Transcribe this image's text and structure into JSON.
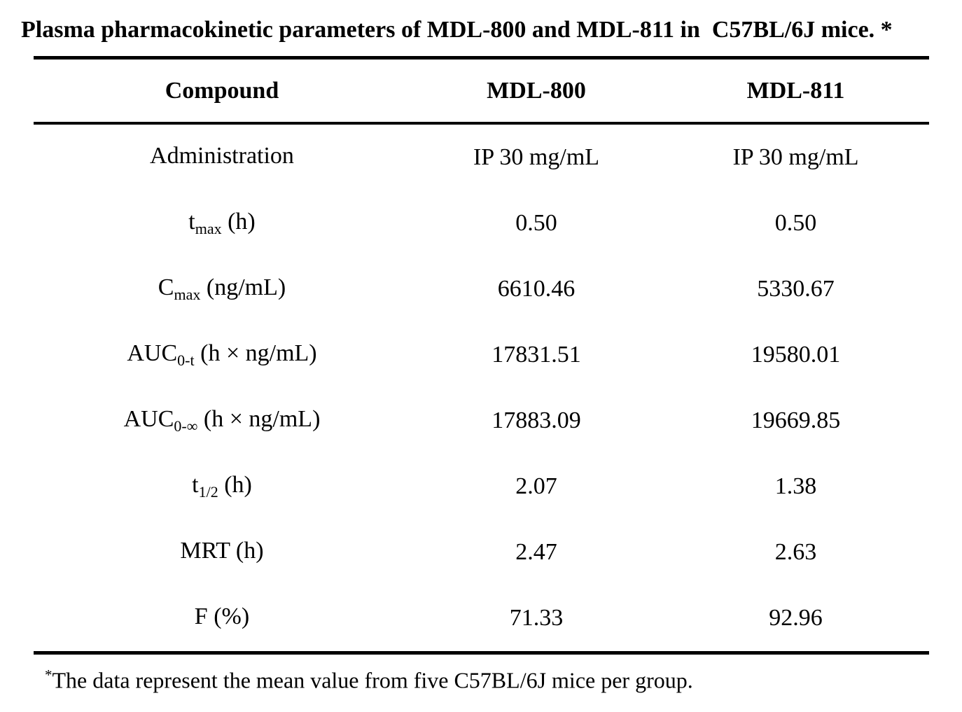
{
  "title": "Plasma pharmacokinetic parameters of MDL-800 and MDL-811 in  C57BL/6J mice. *",
  "table": {
    "header": {
      "compound": "Compound",
      "mdl800": "MDL-800",
      "mdl811": "MDL-811"
    },
    "rows": [
      {
        "label": {
          "pre": "Administration",
          "sub": "",
          "post": ""
        },
        "mdl800": "IP 30 mg/mL",
        "mdl811": "IP 30 mg/mL"
      },
      {
        "label": {
          "pre": "t",
          "sub": "max",
          "post": " (h)"
        },
        "mdl800": "0.50",
        "mdl811": "0.50"
      },
      {
        "label": {
          "pre": "C",
          "sub": "max",
          "post": " (ng/mL)"
        },
        "mdl800": "6610.46",
        "mdl811": "5330.67"
      },
      {
        "label": {
          "pre": "AUC",
          "sub": "0-t",
          "post": " (h × ng/mL)"
        },
        "mdl800": "17831.51",
        "mdl811": "19580.01"
      },
      {
        "label": {
          "pre": "AUC",
          "sub": "0-∞",
          "post": " (h × ng/mL)"
        },
        "mdl800": "17883.09",
        "mdl811": "19669.85"
      },
      {
        "label": {
          "pre": "t",
          "sub": "1/2",
          "post": " (h)"
        },
        "mdl800": "2.07",
        "mdl811": "1.38"
      },
      {
        "label": {
          "pre": "MRT (h)",
          "sub": "",
          "post": ""
        },
        "mdl800": "2.47",
        "mdl811": "2.63"
      },
      {
        "label": {
          "pre": "F (%)",
          "sub": "",
          "post": ""
        },
        "mdl800": "71.33",
        "mdl811": "92.96"
      }
    ]
  },
  "footnote": {
    "marker": "*",
    "text": "The data represent the mean value from five C57BL/6J mice per group."
  },
  "colors": {
    "text": "#000000",
    "background": "#ffffff",
    "rule": "#000000"
  }
}
